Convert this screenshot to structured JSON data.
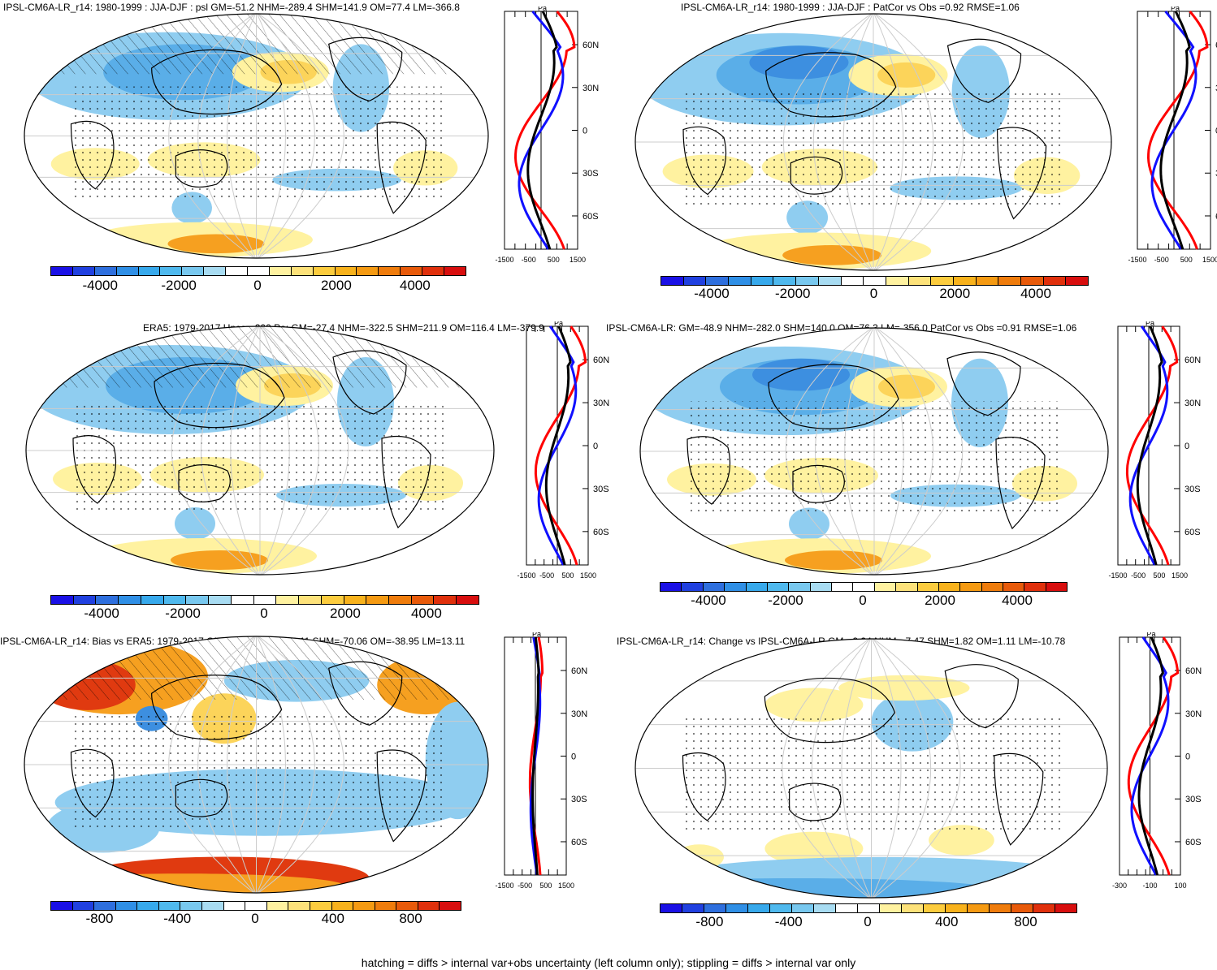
{
  "footer": "hatching = diffs > internal var+obs uncertainty (left column only); stippling = diffs > internal var only",
  "profile_unit": "Pa",
  "panels": [
    {
      "title": "IPSL-CM6A-LR_r14: 1980-1999 : JJA-DJF : psl GM=-51.2 NHM=-289.4 SHM=141.9 OM=77.4 LM=-366.8",
      "lat_labels": [
        "60N",
        "30N",
        "0",
        "30S",
        "60S"
      ],
      "x_ticks": [
        "-1500",
        "-500",
        "500",
        "1500"
      ],
      "cbar_labels": [
        "-4000",
        "-2000",
        "0",
        "2000",
        "4000"
      ]
    },
    {
      "title": "IPSL-CM6A-LR_r14: 1980-1999 : JJA-DJF : PatCor vs Obs =0.92 RMSE=1.06",
      "lat_labels": [
        "6",
        "3",
        "0",
        "3",
        "6"
      ],
      "x_ticks": [
        "-1500",
        "-500",
        "500",
        "1500"
      ],
      "cbar_labels": [
        "-4000",
        "-2000",
        "0",
        "2000",
        "4000"
      ]
    },
    {
      "title": "ERA5: 1979-2017 Uncer=200 Pa: GM=-27.4 NHM=-322.5 SHM=211.9 OM=116.4 LM=-379.9",
      "lat_labels": [
        "60N",
        "30N",
        "0",
        "30S",
        "60S"
      ],
      "x_ticks": [
        "-1500",
        "-500",
        "500",
        "1500"
      ],
      "cbar_labels": [
        "-4000",
        "-2000",
        "0",
        "2000",
        "4000"
      ]
    },
    {
      "title": "IPSL-CM6A-LR: GM=-48.9 NHM=-282.0 SHM=140.0 OM=76.3 LM=-356.0 PatCor vs Obs =0.91 RMSE=1.06",
      "lat_labels": [
        "60N",
        "30N",
        "0",
        "30S",
        "60S"
      ],
      "x_ticks": [
        "-1500",
        "-500",
        "500",
        "1500"
      ],
      "cbar_labels": [
        "-4000",
        "-2000",
        "0",
        "2000",
        "4000"
      ]
    },
    {
      "title": "IPSL-CM6A-LR_r14: Bias vs ERA5: 1979-2017 GM=-23.87 NHM=33.11 SHM=-70.06 OM=-38.95 LM=13.11",
      "lat_labels": [
        "60N",
        "30N",
        "0",
        "30S",
        "60S"
      ],
      "x_ticks": [
        "-1500",
        "-500",
        "500",
        "1500"
      ],
      "cbar_labels": [
        "-800",
        "-400",
        "0",
        "400",
        "800"
      ]
    },
    {
      "title": "IPSL-CM6A-LR_r14: Change vs IPSL-CM6A-LR GM=-2.34 NHM=-7.47 SHM=1.82 OM=1.11 LM=-10.78",
      "lat_labels": [
        "60N",
        "30N",
        "0",
        "30S",
        "60S"
      ],
      "x_ticks": [
        "-300",
        "-100",
        "100"
      ],
      "cbar_labels": [
        "-800",
        "-400",
        "0",
        "400",
        "800"
      ]
    }
  ],
  "palette": [
    "#1a10e6",
    "#2040e0",
    "#2e6fde",
    "#2f8fe6",
    "#37a9ec",
    "#4fb9ee",
    "#78c8ef",
    "#a8dcf2",
    "#ffffff",
    "#ffffff",
    "#fff2a0",
    "#fde27a",
    "#fccc3e",
    "#f8b21c",
    "#f59a12",
    "#ef7c0c",
    "#e85a0a",
    "#e0300c",
    "#d80e0e"
  ]
}
